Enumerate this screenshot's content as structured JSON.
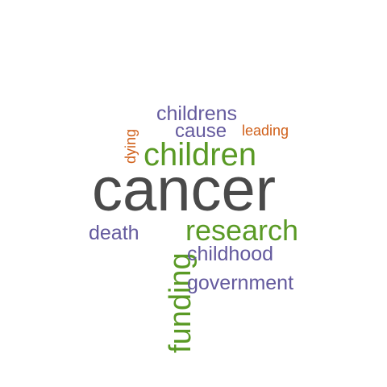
{
  "colors": {
    "background": "#ffffff",
    "gray": "#4a4a4a",
    "green": "#5a9a25",
    "purple": "#645a9e",
    "orange": "#d0601a"
  },
  "words": {
    "cancer": {
      "text": "cancer",
      "color": "#4a4a4a",
      "orientation": "horizontal"
    },
    "children": {
      "text": "children",
      "color": "#5a9a25",
      "orientation": "horizontal"
    },
    "research": {
      "text": "research",
      "color": "#5a9a25",
      "orientation": "horizontal"
    },
    "funding": {
      "text": "funding",
      "color": "#5a9a25",
      "orientation": "vertical"
    },
    "childrens": {
      "text": "childrens",
      "color": "#645a9e",
      "orientation": "horizontal"
    },
    "cause": {
      "text": "cause",
      "color": "#645a9e",
      "orientation": "horizontal"
    },
    "leading": {
      "text": "leading",
      "color": "#d0601a",
      "orientation": "horizontal"
    },
    "dying": {
      "text": "dying",
      "color": "#d0601a",
      "orientation": "vertical"
    },
    "death": {
      "text": "death",
      "color": "#645a9e",
      "orientation": "horizontal"
    },
    "childhood": {
      "text": "childhood",
      "color": "#645a9e",
      "orientation": "horizontal"
    },
    "government": {
      "text": "government",
      "color": "#645a9e",
      "orientation": "horizontal"
    }
  }
}
